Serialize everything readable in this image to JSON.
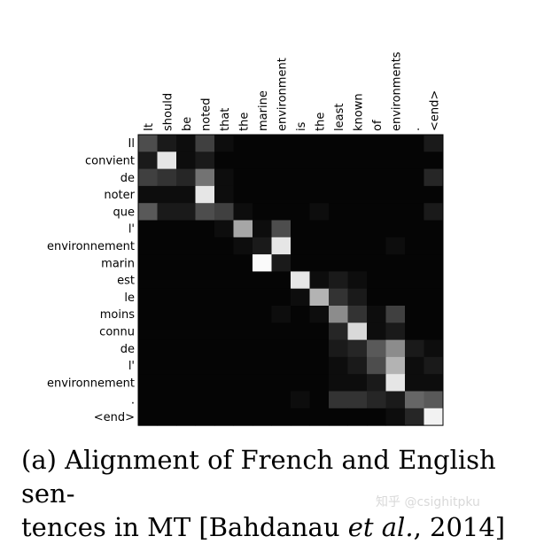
{
  "chart_data": {
    "type": "heatmap",
    "x_labels": [
      "It",
      "should",
      "be",
      "noted",
      "that",
      "the",
      "marine",
      "environment",
      "is",
      "the",
      "least",
      "known",
      "of",
      "environments",
      ".",
      "<end>"
    ],
    "y_labels": [
      "Il",
      "convient",
      "de",
      "noter",
      "que",
      "l'",
      "environnement",
      "marin",
      "est",
      "le",
      "moins",
      "connu",
      "de",
      "l'",
      "environnement",
      ".",
      "<end>"
    ],
    "values": [
      [
        0.3,
        0.1,
        0.05,
        0.25,
        0.05,
        0.02,
        0.02,
        0.02,
        0.02,
        0.02,
        0.02,
        0.02,
        0.02,
        0.02,
        0.02,
        0.1
      ],
      [
        0.1,
        0.9,
        0.05,
        0.1,
        0.02,
        0.02,
        0.02,
        0.02,
        0.02,
        0.02,
        0.02,
        0.02,
        0.02,
        0.02,
        0.02,
        0.02
      ],
      [
        0.25,
        0.2,
        0.15,
        0.45,
        0.05,
        0.02,
        0.02,
        0.02,
        0.02,
        0.02,
        0.02,
        0.02,
        0.02,
        0.02,
        0.02,
        0.15
      ],
      [
        0.05,
        0.05,
        0.05,
        0.9,
        0.05,
        0.02,
        0.02,
        0.02,
        0.02,
        0.02,
        0.02,
        0.02,
        0.02,
        0.02,
        0.02,
        0.02
      ],
      [
        0.35,
        0.1,
        0.1,
        0.3,
        0.25,
        0.05,
        0.02,
        0.02,
        0.02,
        0.05,
        0.02,
        0.02,
        0.02,
        0.02,
        0.02,
        0.1
      ],
      [
        0.02,
        0.02,
        0.02,
        0.02,
        0.05,
        0.65,
        0.05,
        0.3,
        0.02,
        0.02,
        0.02,
        0.02,
        0.02,
        0.02,
        0.02,
        0.02
      ],
      [
        0.02,
        0.02,
        0.02,
        0.02,
        0.02,
        0.05,
        0.1,
        0.9,
        0.02,
        0.02,
        0.02,
        0.02,
        0.02,
        0.05,
        0.02,
        0.02
      ],
      [
        0.02,
        0.02,
        0.02,
        0.02,
        0.02,
        0.02,
        0.98,
        0.1,
        0.02,
        0.02,
        0.02,
        0.02,
        0.02,
        0.02,
        0.02,
        0.02
      ],
      [
        0.02,
        0.02,
        0.02,
        0.02,
        0.02,
        0.02,
        0.02,
        0.02,
        0.9,
        0.05,
        0.1,
        0.05,
        0.02,
        0.02,
        0.02,
        0.02
      ],
      [
        0.02,
        0.02,
        0.02,
        0.02,
        0.02,
        0.02,
        0.02,
        0.02,
        0.05,
        0.7,
        0.2,
        0.1,
        0.02,
        0.02,
        0.02,
        0.02
      ],
      [
        0.02,
        0.02,
        0.02,
        0.02,
        0.02,
        0.02,
        0.02,
        0.05,
        0.02,
        0.05,
        0.55,
        0.2,
        0.05,
        0.25,
        0.02,
        0.02
      ],
      [
        0.02,
        0.02,
        0.02,
        0.02,
        0.02,
        0.02,
        0.02,
        0.02,
        0.02,
        0.02,
        0.15,
        0.85,
        0.05,
        0.1,
        0.02,
        0.02
      ],
      [
        0.02,
        0.02,
        0.02,
        0.02,
        0.02,
        0.02,
        0.02,
        0.02,
        0.02,
        0.02,
        0.1,
        0.15,
        0.35,
        0.55,
        0.1,
        0.05
      ],
      [
        0.02,
        0.02,
        0.02,
        0.02,
        0.02,
        0.02,
        0.02,
        0.02,
        0.02,
        0.02,
        0.05,
        0.1,
        0.3,
        0.7,
        0.05,
        0.1
      ],
      [
        0.02,
        0.02,
        0.02,
        0.02,
        0.02,
        0.02,
        0.02,
        0.02,
        0.02,
        0.02,
        0.05,
        0.05,
        0.1,
        0.9,
        0.05,
        0.05
      ],
      [
        0.02,
        0.02,
        0.02,
        0.02,
        0.02,
        0.02,
        0.02,
        0.02,
        0.05,
        0.02,
        0.2,
        0.2,
        0.15,
        0.1,
        0.4,
        0.35
      ],
      [
        0.02,
        0.02,
        0.02,
        0.02,
        0.02,
        0.02,
        0.02,
        0.02,
        0.02,
        0.02,
        0.02,
        0.02,
        0.02,
        0.05,
        0.15,
        0.95
      ]
    ],
    "colormap": "gray",
    "grid": false,
    "legend": "none"
  },
  "caption": {
    "part1": "(a) Alignment of French and English sen-",
    "part2": "tences in MT [Bahdanau ",
    "italic": "et al.",
    "part3": ", 2014]"
  },
  "watermark": "知乎 @csighitpku"
}
